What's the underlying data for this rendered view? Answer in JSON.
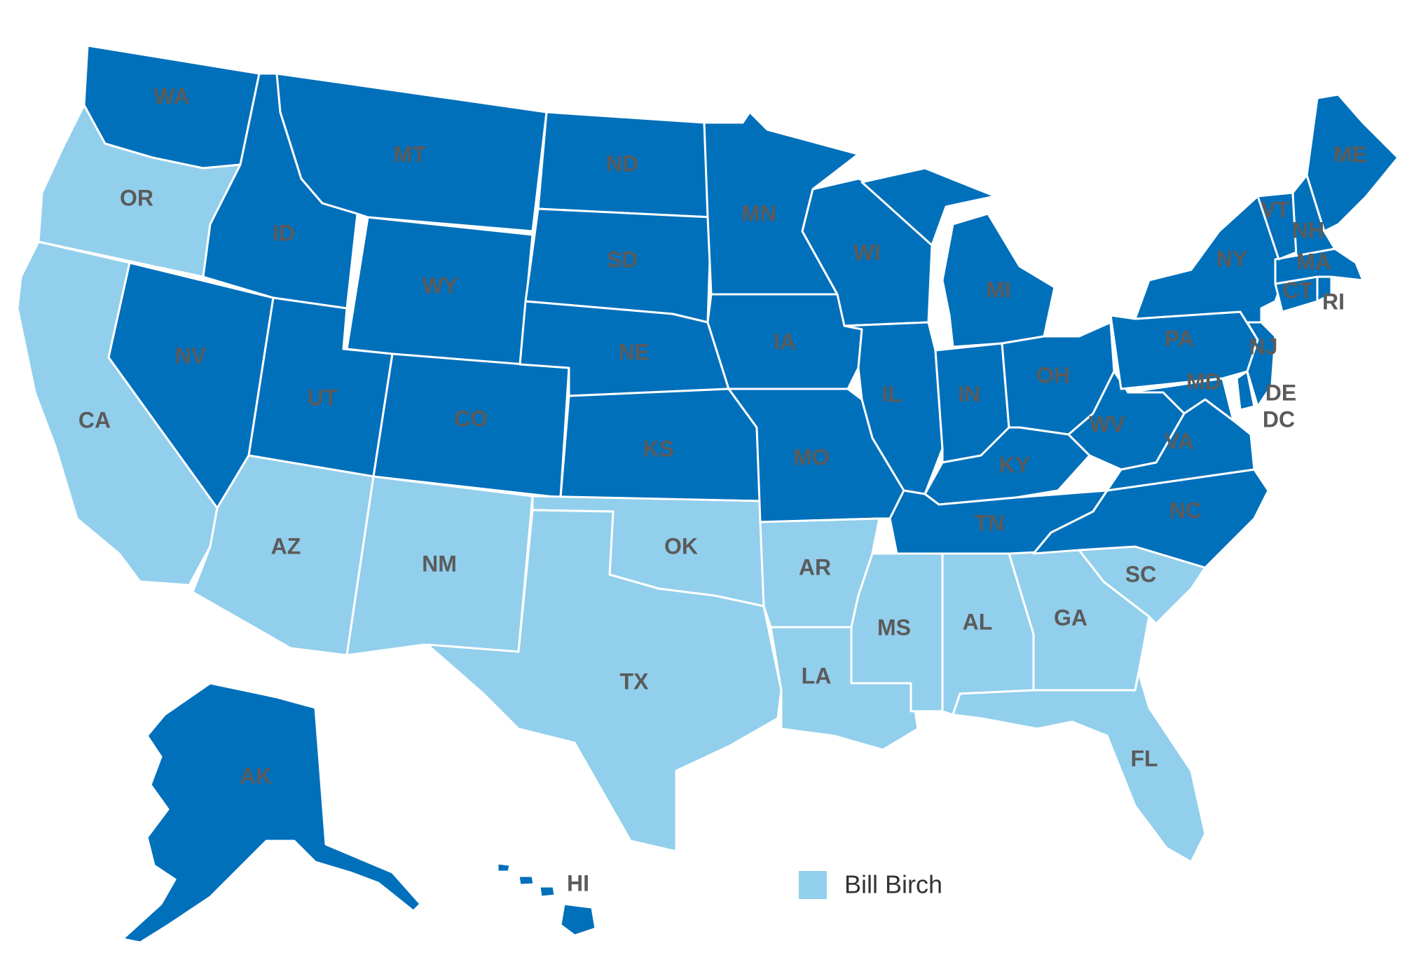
{
  "colors": {
    "dark": "#0070bb",
    "light": "#92cfec",
    "label": "#5b5b5b",
    "border": "#ffffff"
  },
  "legend": {
    "swatch_color": "#92cfec",
    "label": "Bill Birch"
  },
  "states": [
    {
      "id": "WA",
      "label": "WA",
      "group": "dark"
    },
    {
      "id": "OR",
      "label": "OR",
      "group": "light"
    },
    {
      "id": "CA",
      "label": "CA",
      "group": "light"
    },
    {
      "id": "ID",
      "label": "ID",
      "group": "dark"
    },
    {
      "id": "NV",
      "label": "NV",
      "group": "dark"
    },
    {
      "id": "MT",
      "label": "MT",
      "group": "dark"
    },
    {
      "id": "WY",
      "label": "WY",
      "group": "dark"
    },
    {
      "id": "UT",
      "label": "UT",
      "group": "dark"
    },
    {
      "id": "AZ",
      "label": "AZ",
      "group": "light"
    },
    {
      "id": "CO",
      "label": "CO",
      "group": "dark"
    },
    {
      "id": "NM",
      "label": "NM",
      "group": "light"
    },
    {
      "id": "ND",
      "label": "ND",
      "group": "dark"
    },
    {
      "id": "SD",
      "label": "SD",
      "group": "dark"
    },
    {
      "id": "NE",
      "label": "NE",
      "group": "dark"
    },
    {
      "id": "KS",
      "label": "KS",
      "group": "dark"
    },
    {
      "id": "OK",
      "label": "OK",
      "group": "light"
    },
    {
      "id": "TX",
      "label": "TX",
      "group": "light"
    },
    {
      "id": "MN",
      "label": "MN",
      "group": "dark"
    },
    {
      "id": "IA",
      "label": "IA",
      "group": "dark"
    },
    {
      "id": "MO",
      "label": "MO",
      "group": "dark"
    },
    {
      "id": "AR",
      "label": "AR",
      "group": "light"
    },
    {
      "id": "LA",
      "label": "LA",
      "group": "light"
    },
    {
      "id": "WI",
      "label": "WI",
      "group": "dark"
    },
    {
      "id": "IL",
      "label": "IL",
      "group": "dark"
    },
    {
      "id": "MI",
      "label": "MI",
      "group": "dark"
    },
    {
      "id": "IN",
      "label": "IN",
      "group": "dark"
    },
    {
      "id": "OH",
      "label": "OH",
      "group": "dark"
    },
    {
      "id": "KY",
      "label": "KY",
      "group": "dark"
    },
    {
      "id": "TN",
      "label": "TN",
      "group": "dark"
    },
    {
      "id": "MS",
      "label": "MS",
      "group": "light"
    },
    {
      "id": "AL",
      "label": "AL",
      "group": "light"
    },
    {
      "id": "GA",
      "label": "GA",
      "group": "light"
    },
    {
      "id": "FL",
      "label": "FL",
      "group": "light"
    },
    {
      "id": "SC",
      "label": "SC",
      "group": "light"
    },
    {
      "id": "NC",
      "label": "NC",
      "group": "dark"
    },
    {
      "id": "VA",
      "label": "VA",
      "group": "dark"
    },
    {
      "id": "WV",
      "label": "WV",
      "group": "dark"
    },
    {
      "id": "PA",
      "label": "PA",
      "group": "dark"
    },
    {
      "id": "NY",
      "label": "NY",
      "group": "dark"
    },
    {
      "id": "MD",
      "label": "MD",
      "group": "dark"
    },
    {
      "id": "DE",
      "label": "DE",
      "group": "dark"
    },
    {
      "id": "DC",
      "label": "DC",
      "group": "dark"
    },
    {
      "id": "NJ",
      "label": "NJ",
      "group": "dark"
    },
    {
      "id": "CT",
      "label": "CT",
      "group": "dark"
    },
    {
      "id": "RI",
      "label": "RI",
      "group": "dark"
    },
    {
      "id": "MA",
      "label": "MA",
      "group": "dark"
    },
    {
      "id": "VT",
      "label": "VT",
      "group": "dark"
    },
    {
      "id": "NH",
      "label": "NH",
      "group": "dark"
    },
    {
      "id": "ME",
      "label": "ME",
      "group": "dark"
    },
    {
      "id": "AK",
      "label": "AK",
      "group": "dark"
    },
    {
      "id": "HI",
      "label": "HI",
      "group": "dark"
    }
  ]
}
